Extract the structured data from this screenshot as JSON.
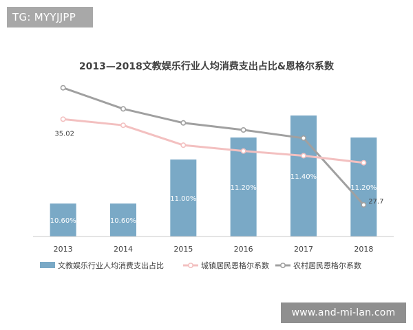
{
  "watermarks": {
    "top_left": "TG: MYYJJPP",
    "bottom_right": "www.and-mi-lan.com"
  },
  "chart_data": {
    "type": "bar",
    "title": "2013—2018文教娱乐行业人均消费支出占比&恩格尔系数",
    "categories": [
      "2013",
      "2014",
      "2015",
      "2016",
      "2017",
      "2018"
    ],
    "series": [
      {
        "name": "文教娱乐行业人均消费支出占比",
        "type": "bar",
        "values": [
          10.6,
          10.6,
          11.0,
          11.2,
          11.4,
          11.2
        ],
        "labels": [
          "10.60%",
          "10.60%",
          "11.00%",
          "11.20%",
          "11.40%",
          "11.20%"
        ],
        "color": "#7aa9c6",
        "ylim": [
          10.3,
          11.5
        ]
      },
      {
        "name": "城镇居民恩格尔系数",
        "type": "line",
        "values": [
          35.02,
          34.5,
          32.8,
          32.3,
          31.9,
          31.3
        ],
        "labels": [
          "35.02",
          "",
          "",
          "",
          "",
          ""
        ],
        "color": "#f3c0c0",
        "ylim": [
          25,
          40.5
        ]
      },
      {
        "name": "农村居民恩格尔系数",
        "type": "line",
        "values": [
          37.7,
          35.9,
          34.7,
          34.1,
          33.4,
          27.7
        ],
        "labels": [
          "",
          "",
          "",
          "",
          "",
          "27.7"
        ],
        "color": "#a0a0a0",
        "ylim": [
          25,
          40.5
        ]
      }
    ],
    "grid": false,
    "legend": "bottom"
  }
}
